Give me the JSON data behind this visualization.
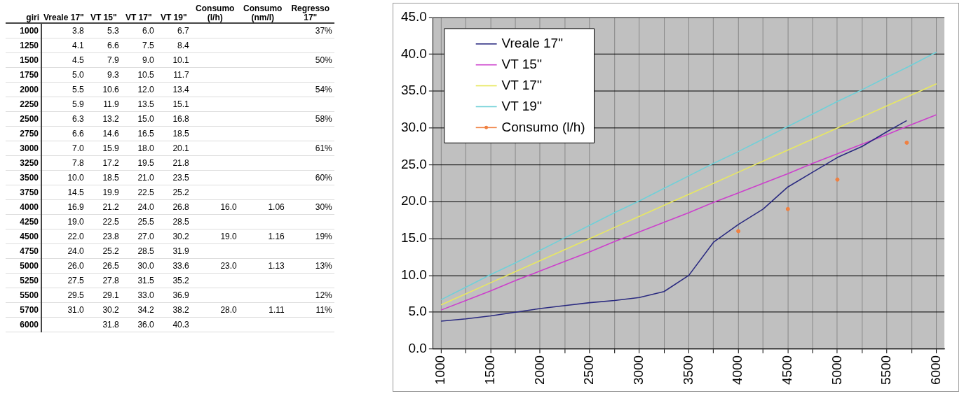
{
  "chart_data": [
    {
      "type": "other",
      "xlabel": "giri",
      "data_labels": true,
      "categories": [
        "1000",
        "1250",
        "1500",
        "1750",
        "2000",
        "2250",
        "2500",
        "2750",
        "3000",
        "3250",
        "3500",
        "3750",
        "4000",
        "4250",
        "4500",
        "4750",
        "5000",
        "5250",
        "5500",
        "5700",
        "6000"
      ],
      "series": [
        {
          "name": "Vreale 17\"",
          "values": [
            3.8,
            4.1,
            4.5,
            5.0,
            5.5,
            5.9,
            6.3,
            6.6,
            7.0,
            7.8,
            10.0,
            14.5,
            16.9,
            19.0,
            22.0,
            24.0,
            26.0,
            27.5,
            29.5,
            31.0,
            null
          ],
          "value_labels": [
            "3.8",
            "4.1",
            "4.5",
            "5.0",
            "5.5",
            "5.9",
            "6.3",
            "6.6",
            "7.0",
            "7.8",
            "10.0",
            "14.5",
            "16.9",
            "19.0",
            "22.0",
            "24.0",
            "26.0",
            "27.5",
            "29.5",
            "31.0",
            null
          ]
        },
        {
          "name": "VT 15\"",
          "values": [
            5.3,
            6.6,
            7.9,
            9.3,
            10.6,
            11.9,
            13.2,
            14.6,
            15.9,
            17.2,
            18.5,
            19.9,
            21.2,
            22.5,
            23.8,
            25.2,
            26.5,
            27.8,
            29.1,
            30.2,
            31.8
          ]
        },
        {
          "name": "VT 17\"",
          "values": [
            6.0,
            7.5,
            9.0,
            10.5,
            12.0,
            13.5,
            15.0,
            16.5,
            18.0,
            19.5,
            21.0,
            22.5,
            24.0,
            25.5,
            27.0,
            28.5,
            30.0,
            31.5,
            33.0,
            34.2,
            36.0
          ],
          "value_labels": [
            "6.0",
            "7.5",
            "9.0",
            "10.5",
            "12.0",
            "13.5",
            "15.0",
            "16.5",
            "18.0",
            "19.5",
            "21.0",
            "22.5",
            "24.0",
            "25.5",
            "27.0",
            "28.5",
            "30.0",
            "31.5",
            "33.0",
            "34.2",
            "36.0"
          ]
        },
        {
          "name": "VT 19\"",
          "values": [
            6.7,
            8.4,
            10.1,
            11.7,
            13.4,
            15.1,
            16.8,
            18.5,
            20.1,
            21.8,
            23.5,
            25.2,
            26.8,
            28.5,
            30.2,
            31.9,
            33.6,
            35.2,
            36.9,
            38.2,
            40.3
          ]
        },
        {
          "name": "Consumo (l/h)",
          "values": [
            null,
            null,
            null,
            null,
            null,
            null,
            null,
            null,
            null,
            null,
            null,
            null,
            16.0,
            null,
            19.0,
            null,
            23.0,
            null,
            null,
            28.0,
            null
          ],
          "value_labels": [
            null,
            null,
            null,
            null,
            null,
            null,
            null,
            null,
            null,
            null,
            null,
            null,
            "16.0",
            null,
            "19.0",
            null,
            "23.0",
            null,
            null,
            "28.0",
            null
          ]
        },
        {
          "name": "Consumo (nm/l)",
          "values": [
            null,
            null,
            null,
            null,
            null,
            null,
            null,
            null,
            null,
            null,
            null,
            null,
            1.06,
            null,
            1.16,
            null,
            1.13,
            null,
            null,
            1.11,
            null
          ]
        },
        {
          "name": "Regresso 17\"",
          "values": [
            37,
            null,
            50,
            null,
            54,
            null,
            58,
            null,
            61,
            null,
            60,
            null,
            30,
            null,
            19,
            null,
            13,
            null,
            12,
            11,
            null
          ],
          "value_labels": [
            "37%",
            null,
            "50%",
            null,
            "54%",
            null,
            "58%",
            null,
            "61%",
            null,
            "60%",
            null,
            "30%",
            null,
            "19%",
            null,
            "13%",
            null,
            "12%",
            "11%",
            null
          ]
        }
      ]
    },
    {
      "type": "line",
      "x": [
        1000,
        1250,
        1500,
        1750,
        2000,
        2250,
        2500,
        2750,
        3000,
        3250,
        3500,
        3750,
        4000,
        4250,
        4500,
        4750,
        5000,
        5250,
        5500,
        5700,
        6000
      ],
      "series": [
        {
          "name": "Vreale 17''",
          "color": "#2a2a80",
          "values": [
            3.8,
            4.1,
            4.5,
            5.0,
            5.5,
            5.9,
            6.3,
            6.6,
            7.0,
            7.8,
            10.0,
            14.5,
            16.9,
            19.0,
            22.0,
            24.0,
            26.0,
            27.5,
            29.5,
            31.0,
            null
          ]
        },
        {
          "name": "VT 15''",
          "color": "#cc40cc",
          "values": [
            5.3,
            6.6,
            7.9,
            9.3,
            10.6,
            11.9,
            13.2,
            14.6,
            15.9,
            17.2,
            18.5,
            19.9,
            21.2,
            22.5,
            23.8,
            25.2,
            26.5,
            27.8,
            29.1,
            30.2,
            31.8
          ]
        },
        {
          "name": "VT 17''",
          "color": "#e8e860",
          "values": [
            6.0,
            7.5,
            9.0,
            10.5,
            12.0,
            13.5,
            15.0,
            16.5,
            18.0,
            19.5,
            21.0,
            22.5,
            24.0,
            25.5,
            27.0,
            28.5,
            30.0,
            31.5,
            33.0,
            34.2,
            36.0
          ]
        },
        {
          "name": "VT 19''",
          "color": "#70d0d8",
          "values": [
            6.7,
            8.4,
            10.1,
            11.7,
            13.4,
            15.1,
            16.8,
            18.5,
            20.1,
            21.8,
            23.5,
            25.2,
            26.8,
            28.5,
            30.2,
            31.9,
            33.6,
            35.2,
            36.9,
            38.2,
            40.3
          ]
        },
        {
          "name": "Consumo (l/h)",
          "type": "scatter",
          "marker": "circle",
          "color": "#f08040",
          "values": [
            null,
            null,
            null,
            null,
            null,
            null,
            null,
            null,
            null,
            null,
            null,
            null,
            16.0,
            null,
            19.0,
            null,
            23.0,
            null,
            null,
            28.0,
            null
          ]
        }
      ],
      "xlim": [
        920,
        6080
      ],
      "xticks": [
        1000,
        {
          "value": 1250,
          "label": null
        },
        1500,
        {
          "value": 1750,
          "label": null
        },
        2000,
        {
          "value": 2250,
          "label": null
        },
        2500,
        {
          "value": 2750,
          "label": null
        },
        3000,
        {
          "value": 3250,
          "label": null
        },
        3500,
        {
          "value": 3750,
          "label": null
        },
        4000,
        {
          "value": 4250,
          "label": null
        },
        4500,
        {
          "value": 4750,
          "label": null
        },
        5000,
        {
          "value": 5250,
          "label": null
        },
        5500,
        {
          "value": 5750,
          "label": null
        },
        6000
      ],
      "ylim": [
        0,
        45
      ],
      "yticks": [
        {
          "value": 0,
          "label": "0.0"
        },
        {
          "value": 5,
          "label": "5.0"
        },
        {
          "value": 10,
          "label": "10.0"
        },
        {
          "value": 15,
          "label": "15.0"
        },
        {
          "value": 20,
          "label": "20.0"
        },
        {
          "value": 25,
          "label": "25.0"
        },
        {
          "value": 30,
          "label": "30.0"
        },
        {
          "value": 35,
          "label": "35.0"
        },
        {
          "value": 40,
          "label": "40.0"
        },
        {
          "value": 45,
          "label": "45.0"
        }
      ],
      "grid": true,
      "legend": "top left",
      "marker": "none",
      "line_style": "solid"
    }
  ]
}
